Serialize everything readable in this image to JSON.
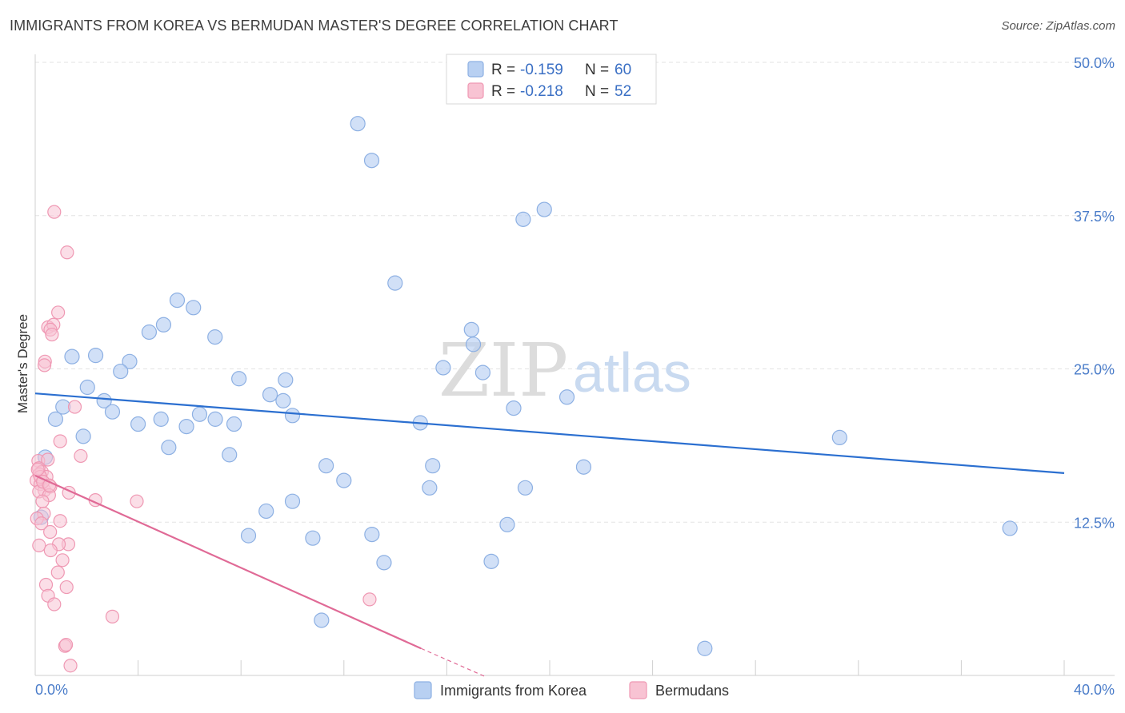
{
  "title": "IMMIGRANTS FROM KOREA VS BERMUDAN MASTER'S DEGREE CORRELATION CHART",
  "source": "Source: ZipAtlas.com",
  "watermark": {
    "zip": "ZIP",
    "atlas": "atlas"
  },
  "stats": [
    {
      "r_label": "R =",
      "r_value": "-0.159",
      "n_label": "N =",
      "n_value": "60"
    },
    {
      "r_label": "R =",
      "r_value": "-0.218",
      "n_label": "N =",
      "n_value": "52"
    }
  ],
  "colors": {
    "korea_fill": "#b8d0f2",
    "korea_stroke": "#8db0e3",
    "korea_line": "#2b6fd0",
    "bermuda_fill": "#f8c3d3",
    "bermuda_stroke": "#ef98b3",
    "bermuda_line": "#e06a96",
    "tick_text": "#4a7cc9",
    "grid": "#e3e3e3"
  },
  "chart_data": {
    "type": "scatter",
    "title": "IMMIGRANTS FROM KOREA VS BERMUDAN MASTER'S DEGREE CORRELATION CHART",
    "xlabel": "",
    "ylabel": "Master's Degree",
    "xlim": [
      0,
      40
    ],
    "ylim": [
      0,
      50
    ],
    "x_tick_labels": [
      "0.0%",
      "40.0%"
    ],
    "y_ticks": [
      12.5,
      25,
      37.5,
      50
    ],
    "y_tick_labels": [
      "12.5%",
      "25.0%",
      "37.5%",
      "50.0%"
    ],
    "grid": true,
    "legend_position": "bottom",
    "series": [
      {
        "name": "Immigrants from Korea",
        "points": [
          [
            12.54,
            45.0
          ],
          [
            13.08,
            42.0
          ],
          [
            18.97,
            37.2
          ],
          [
            19.79,
            38.0
          ],
          [
            13.99,
            32.0
          ],
          [
            5.52,
            30.6
          ],
          [
            6.15,
            30.0
          ],
          [
            4.99,
            28.6
          ],
          [
            4.43,
            28.0
          ],
          [
            6.99,
            27.6
          ],
          [
            16.96,
            28.2
          ],
          [
            17.03,
            27.0
          ],
          [
            1.43,
            26.0
          ],
          [
            2.35,
            26.1
          ],
          [
            3.67,
            25.6
          ],
          [
            3.32,
            24.8
          ],
          [
            15.86,
            25.1
          ],
          [
            17.4,
            24.7
          ],
          [
            7.92,
            24.2
          ],
          [
            9.73,
            24.1
          ],
          [
            2.03,
            23.5
          ],
          [
            9.13,
            22.9
          ],
          [
            9.64,
            22.4
          ],
          [
            20.67,
            22.7
          ],
          [
            1.08,
            21.9
          ],
          [
            2.68,
            22.4
          ],
          [
            3.0,
            21.5
          ],
          [
            6.39,
            21.3
          ],
          [
            7.0,
            20.9
          ],
          [
            1.87,
            19.5
          ],
          [
            4.0,
            20.5
          ],
          [
            4.89,
            20.9
          ],
          [
            5.88,
            20.3
          ],
          [
            7.73,
            20.5
          ],
          [
            10.0,
            21.2
          ],
          [
            14.97,
            20.6
          ],
          [
            18.6,
            21.8
          ],
          [
            31.27,
            19.4
          ],
          [
            0.39,
            17.8
          ],
          [
            0.79,
            20.9
          ],
          [
            5.19,
            18.6
          ],
          [
            7.55,
            18.0
          ],
          [
            11.31,
            17.1
          ],
          [
            15.45,
            17.1
          ],
          [
            21.32,
            17.0
          ],
          [
            12.0,
            15.9
          ],
          [
            15.33,
            15.3
          ],
          [
            19.05,
            15.3
          ],
          [
            10.0,
            14.2
          ],
          [
            8.98,
            13.4
          ],
          [
            0.23,
            12.9
          ],
          [
            8.29,
            11.4
          ],
          [
            10.79,
            11.2
          ],
          [
            13.09,
            11.5
          ],
          [
            18.35,
            12.3
          ],
          [
            17.73,
            9.3
          ],
          [
            13.56,
            9.2
          ],
          [
            37.89,
            12.0
          ],
          [
            11.13,
            4.5
          ],
          [
            26.03,
            2.2
          ]
        ],
        "trendline": {
          "x": [
            0,
            40
          ],
          "y": [
            23.0,
            16.5
          ]
        }
      },
      {
        "name": "Bermudans",
        "points": [
          [
            0.74,
            37.8
          ],
          [
            1.24,
            34.5
          ],
          [
            0.89,
            29.6
          ],
          [
            0.5,
            28.4
          ],
          [
            0.71,
            28.6
          ],
          [
            0.59,
            28.2
          ],
          [
            0.38,
            25.6
          ],
          [
            0.36,
            25.3
          ],
          [
            1.54,
            21.9
          ],
          [
            0.97,
            19.1
          ],
          [
            1.77,
            17.9
          ],
          [
            0.12,
            17.5
          ],
          [
            0.49,
            17.6
          ],
          [
            0.14,
            16.9
          ],
          [
            0.26,
            16.6
          ],
          [
            0.16,
            16.4
          ],
          [
            0.05,
            15.9
          ],
          [
            0.44,
            16.2
          ],
          [
            0.2,
            15.6
          ],
          [
            0.36,
            15.1
          ],
          [
            0.59,
            15.4
          ],
          [
            0.15,
            15.0
          ],
          [
            1.31,
            14.9
          ],
          [
            0.54,
            14.7
          ],
          [
            0.28,
            14.2
          ],
          [
            2.34,
            14.3
          ],
          [
            3.95,
            14.2
          ],
          [
            0.34,
            13.2
          ],
          [
            0.07,
            12.8
          ],
          [
            0.97,
            12.6
          ],
          [
            0.24,
            12.4
          ],
          [
            0.58,
            11.7
          ],
          [
            0.15,
            10.6
          ],
          [
            1.29,
            10.7
          ],
          [
            0.92,
            10.7
          ],
          [
            0.6,
            10.2
          ],
          [
            1.06,
            9.4
          ],
          [
            0.88,
            8.4
          ],
          [
            0.42,
            7.4
          ],
          [
            1.22,
            7.2
          ],
          [
            0.5,
            6.5
          ],
          [
            13.0,
            6.2
          ],
          [
            0.74,
            5.8
          ],
          [
            3.0,
            4.8
          ],
          [
            1.16,
            2.4
          ],
          [
            1.2,
            2.5
          ],
          [
            1.37,
            0.8
          ],
          [
            0.65,
            27.8
          ],
          [
            0.2,
            16.2
          ],
          [
            0.3,
            15.8
          ],
          [
            0.1,
            16.8
          ],
          [
            0.55,
            15.5
          ]
        ],
        "trendline": {
          "x": [
            0,
            15
          ],
          "y": [
            16.3,
            2.2
          ],
          "dashed_x": [
            15,
            17.5
          ],
          "dashed_y": [
            2.2,
            -0.1
          ]
        }
      }
    ]
  },
  "legend": {
    "korea": "Immigrants from Korea",
    "bermuda": "Bermudans"
  }
}
